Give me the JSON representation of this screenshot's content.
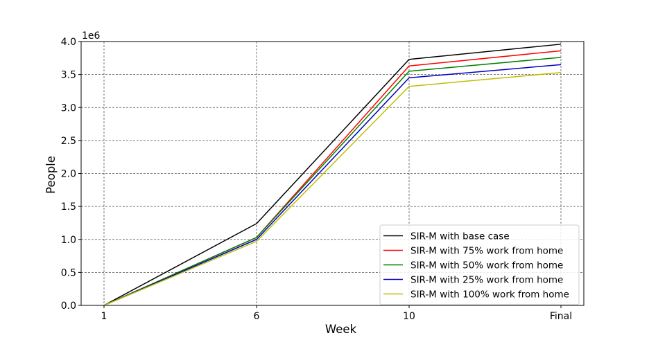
{
  "chart_data": {
    "type": "line",
    "title": "",
    "xlabel": "Week",
    "ylabel": "People",
    "y_scale_label": "1e6",
    "categories": [
      "1",
      "6",
      "10",
      "Final"
    ],
    "ylim": [
      0,
      4000000
    ],
    "yticks": [
      0,
      500000,
      1000000,
      1500000,
      2000000,
      2500000,
      3000000,
      3500000,
      4000000
    ],
    "ytick_labels": [
      "0.0",
      "0.5",
      "1.0",
      "1.5",
      "2.0",
      "2.5",
      "3.0",
      "3.5",
      "4.0"
    ],
    "grid": true,
    "legend_position": "bottom-right",
    "series": [
      {
        "name": "SIR-M with base case",
        "color": "#000000",
        "values": [
          0,
          1240000,
          3730000,
          3960000
        ]
      },
      {
        "name": "SIR-M with 75% work from home",
        "color": "#ff0000",
        "values": [
          0,
          1030000,
          3630000,
          3860000
        ]
      },
      {
        "name": "SIR-M with 50% work from home",
        "color": "#008000",
        "values": [
          0,
          1030000,
          3550000,
          3760000
        ]
      },
      {
        "name": "SIR-M with 25% work from home",
        "color": "#0000bf",
        "values": [
          0,
          1000000,
          3450000,
          3650000
        ]
      },
      {
        "name": "SIR-M with 100% work from home",
        "color": "#bfbf00",
        "values": [
          0,
          970000,
          3320000,
          3530000
        ]
      }
    ]
  }
}
